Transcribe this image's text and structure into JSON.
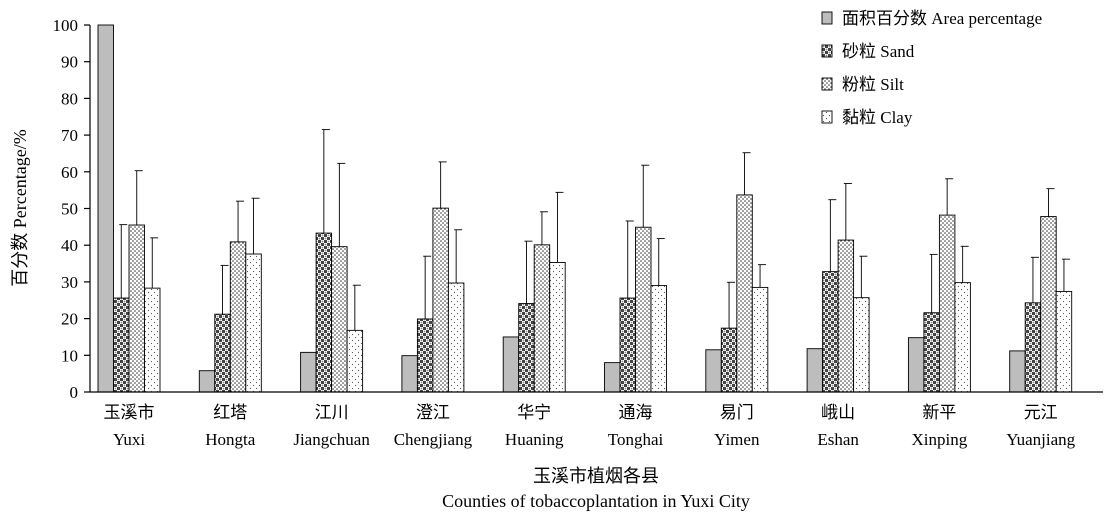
{
  "chart_data": {
    "type": "bar",
    "xlabel_cn": "玉溪市植烟各县",
    "xlabel_en": "Counties of tobaccoplantation in Yuxi City",
    "ylabel": "百分数 Percentage/%",
    "ylim": [
      0,
      100
    ],
    "yticks": [
      0,
      10,
      20,
      30,
      40,
      50,
      60,
      70,
      80,
      90,
      100
    ],
    "legend_position": "top-right",
    "categories_cn": [
      "玉溪市",
      "红塔",
      "江川",
      "澄江",
      "华宁",
      "通海",
      "易门",
      "峨山",
      "新平",
      "元江"
    ],
    "categories_en": [
      "Yuxi",
      "Hongta",
      "Jiangchuan",
      "Chengjiang",
      "Huaning",
      "Tonghai",
      "Yimen",
      "Eshan",
      "Xinping",
      "Yuanjiang"
    ],
    "series": [
      {
        "name": "面积百分数 Area percentage",
        "pattern": "solid-gray",
        "values": [
          100,
          5.8,
          10.8,
          9.9,
          15.0,
          8.0,
          11.5,
          11.8,
          14.8,
          11.2
        ],
        "error": [
          null,
          null,
          null,
          null,
          null,
          null,
          null,
          null,
          null,
          null
        ]
      },
      {
        "name": "砂粒 Sand",
        "pattern": "dark-checker",
        "values": [
          25.6,
          21.2,
          43.3,
          19.9,
          24.1,
          25.6,
          17.4,
          32.8,
          21.6,
          24.3
        ],
        "error": [
          20.0,
          13.3,
          28.2,
          17.1,
          17.0,
          21.0,
          12.5,
          19.6,
          15.9,
          12.4
        ]
      },
      {
        "name": "粉粒 Silt",
        "pattern": "dotted",
        "values": [
          45.5,
          40.9,
          39.6,
          50.1,
          40.1,
          44.9,
          53.7,
          41.4,
          48.2,
          47.8
        ],
        "error": [
          14.8,
          11.1,
          22.7,
          12.6,
          9.0,
          16.9,
          11.5,
          15.4,
          9.9,
          7.6
        ]
      },
      {
        "name": "黏粒 Clay",
        "pattern": "sparse-dots",
        "values": [
          28.3,
          37.6,
          16.8,
          29.7,
          35.3,
          29.0,
          28.5,
          25.7,
          29.8,
          27.4
        ],
        "error": [
          13.7,
          15.2,
          12.3,
          14.5,
          19.1,
          12.8,
          6.2,
          11.3,
          9.9,
          8.8
        ]
      }
    ]
  },
  "colors": {
    "area_fill": "#bdbdbd",
    "axis": "#000000",
    "bar_stroke": "#000000"
  }
}
